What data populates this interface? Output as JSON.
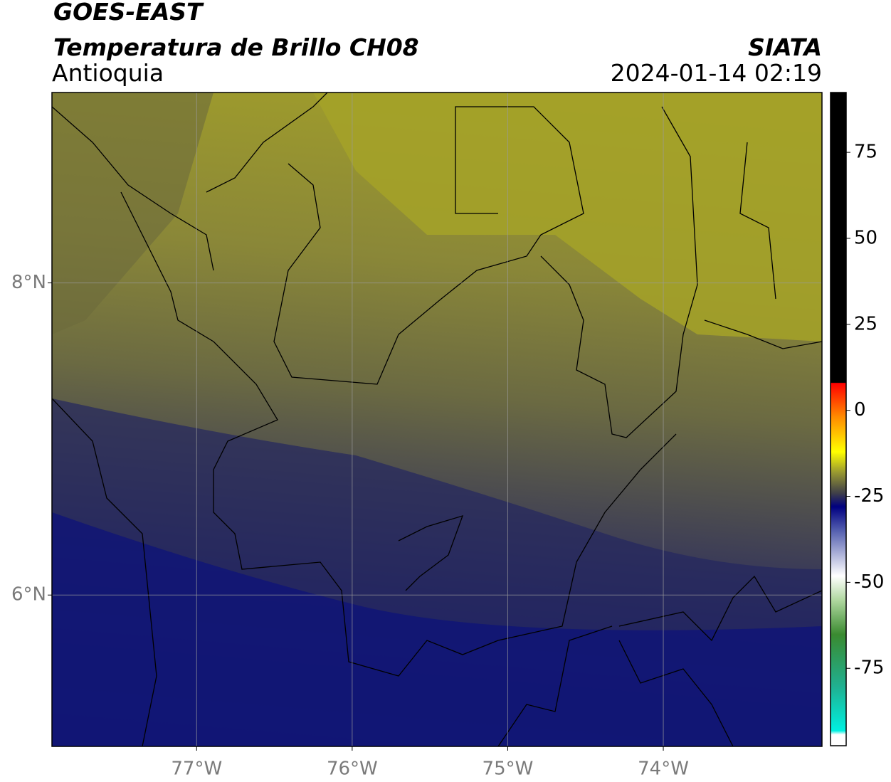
{
  "header": {
    "title": "GOES-EAST",
    "subtitle": "Temperatura de Brillo CH08",
    "region": "Antioquia",
    "source": "SIATA",
    "datetime": "2024-01-14 02:19"
  },
  "map": {
    "xlim": [
      -77.93,
      -72.98
    ],
    "ylim": [
      5.03,
      9.22
    ],
    "xticks": [
      {
        "value": -77,
        "label": "77°W"
      },
      {
        "value": -76,
        "label": "76°W"
      },
      {
        "value": -75,
        "label": "75°W"
      },
      {
        "value": -74,
        "label": "74°W"
      }
    ],
    "yticks": [
      {
        "value": 6,
        "label": "6°N"
      },
      {
        "value": 8,
        "label": "8°N"
      }
    ],
    "grid": true
  },
  "colorbar": {
    "lim": [
      -97.5,
      92.4
    ],
    "ticks": [
      -75,
      -50,
      -25,
      0,
      25,
      50,
      75
    ]
  }
}
